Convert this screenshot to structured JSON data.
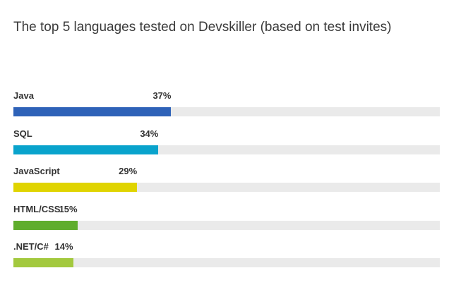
{
  "chart_data": {
    "type": "bar",
    "title": "The top 5 languages tested on Devskiller (based on test invites)",
    "categories": [
      "Java",
      "SQL",
      "JavaScript",
      "HTML/CSS",
      ".NET/C#"
    ],
    "values": [
      37,
      34,
      29,
      15,
      14
    ],
    "value_labels": [
      "37%",
      "34%",
      "29%",
      "15%",
      "14%"
    ],
    "colors": [
      "#2e62b8",
      "#09a3cc",
      "#e0d400",
      "#5fad2c",
      "#a3c93e"
    ],
    "track_color": "#eaeaea",
    "xlim": [
      0,
      100
    ],
    "grid": false
  }
}
